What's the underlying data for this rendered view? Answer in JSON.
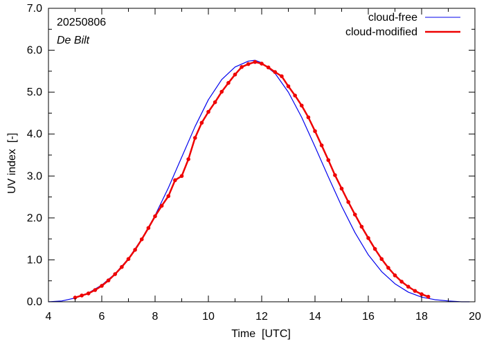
{
  "chart_data": {
    "type": "line",
    "annotations": {
      "date": "20250806",
      "location": "De Bilt"
    },
    "xlabel": "Time  [UTC]",
    "ylabel": "UV index  [-]",
    "xlim": [
      4,
      20
    ],
    "ylim": [
      0,
      7
    ],
    "xticks": [
      4,
      6,
      8,
      10,
      12,
      14,
      16,
      18,
      20
    ],
    "xtick_labels": [
      "4",
      "6",
      "8",
      "10",
      "12",
      "14",
      "16",
      "18",
      "20"
    ],
    "yticks": [
      0,
      1,
      2,
      3,
      4,
      5,
      6,
      7
    ],
    "ytick_labels": [
      "0.0",
      "1.0",
      "2.0",
      "3.0",
      "4.0",
      "5.0",
      "6.0",
      "7.0"
    ],
    "legend_position": "top-right",
    "colors": {
      "cloud_free": "#0000ee",
      "cloud_modified": "#ee0000"
    },
    "series": [
      {
        "name": "cloud-free",
        "style": "line",
        "x": [
          4.0,
          4.5,
          5.0,
          5.5,
          6.0,
          6.5,
          7.0,
          7.5,
          8.0,
          8.5,
          9.0,
          9.5,
          10.0,
          10.5,
          11.0,
          11.5,
          11.75,
          12.0,
          12.5,
          13.0,
          13.5,
          14.0,
          14.5,
          15.0,
          15.5,
          16.0,
          16.5,
          17.0,
          17.5,
          18.0,
          18.5,
          19.0,
          19.5,
          19.8
        ],
        "y": [
          0.0,
          0.02,
          0.09,
          0.21,
          0.4,
          0.67,
          1.03,
          1.5,
          2.06,
          2.72,
          3.45,
          4.18,
          4.82,
          5.3,
          5.6,
          5.74,
          5.76,
          5.7,
          5.45,
          5.0,
          4.4,
          3.7,
          2.98,
          2.28,
          1.65,
          1.12,
          0.72,
          0.43,
          0.23,
          0.11,
          0.05,
          0.02,
          0.0,
          0.0
        ]
      },
      {
        "name": "cloud-modified",
        "style": "line+markers",
        "x": [
          5.0,
          5.25,
          5.5,
          5.75,
          6.0,
          6.25,
          6.5,
          6.75,
          7.0,
          7.25,
          7.5,
          7.75,
          8.0,
          8.25,
          8.5,
          8.75,
          9.0,
          9.25,
          9.5,
          9.75,
          10.0,
          10.25,
          10.5,
          10.75,
          11.0,
          11.25,
          11.5,
          11.75,
          12.0,
          12.25,
          12.5,
          12.75,
          13.0,
          13.25,
          13.5,
          13.75,
          14.0,
          14.25,
          14.5,
          14.75,
          15.0,
          15.25,
          15.5,
          15.75,
          16.0,
          16.25,
          16.5,
          16.75,
          17.0,
          17.25,
          17.5,
          17.75,
          18.0,
          18.25
        ],
        "y": [
          0.1,
          0.15,
          0.2,
          0.28,
          0.38,
          0.51,
          0.66,
          0.83,
          1.02,
          1.24,
          1.49,
          1.76,
          2.04,
          2.29,
          2.52,
          2.9,
          3.0,
          3.4,
          3.91,
          4.27,
          4.53,
          4.76,
          5.01,
          5.22,
          5.42,
          5.6,
          5.67,
          5.72,
          5.68,
          5.59,
          5.48,
          5.38,
          5.14,
          4.92,
          4.68,
          4.4,
          4.07,
          3.73,
          3.38,
          3.02,
          2.7,
          2.38,
          2.08,
          1.79,
          1.52,
          1.26,
          1.02,
          0.81,
          0.63,
          0.48,
          0.36,
          0.26,
          0.18,
          0.12
        ]
      }
    ]
  }
}
